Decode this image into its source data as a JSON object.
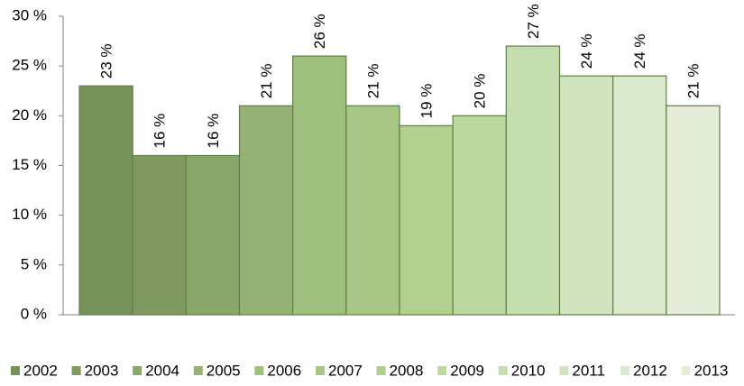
{
  "chart_data": {
    "type": "bar",
    "ylim": [
      0,
      30
    ],
    "yticks": [
      {
        "value": 0,
        "label": "0 %"
      },
      {
        "value": 5,
        "label": "5 %"
      },
      {
        "value": 10,
        "label": "10 %"
      },
      {
        "value": 15,
        "label": "15 %"
      },
      {
        "value": 20,
        "label": "20 %"
      },
      {
        "value": 25,
        "label": "25 %"
      },
      {
        "value": 30,
        "label": "30 %"
      }
    ],
    "legend": "bottom",
    "series": [
      {
        "name": "2002",
        "color": "#77915a",
        "values": [
          23
        ],
        "value_labels": [
          "23 %"
        ]
      },
      {
        "name": "2003",
        "color": "#809a61",
        "values": [
          16
        ],
        "value_labels": [
          "16 %"
        ]
      },
      {
        "name": "2004",
        "color": "#89a66b",
        "values": [
          16
        ],
        "value_labels": [
          "16 %"
        ]
      },
      {
        "name": "2005",
        "color": "#95b175",
        "values": [
          21
        ],
        "value_labels": [
          "21 %"
        ]
      },
      {
        "name": "2006",
        "color": "#9fbf7f",
        "values": [
          26
        ],
        "value_labels": [
          "26 %"
        ]
      },
      {
        "name": "2007",
        "color": "#a8c786",
        "values": [
          21
        ],
        "value_labels": [
          "21 %"
        ]
      },
      {
        "name": "2008",
        "color": "#b1d08e",
        "values": [
          19
        ],
        "value_labels": [
          "19 %"
        ]
      },
      {
        "name": "2009",
        "color": "#bcd8a0",
        "values": [
          20
        ],
        "value_labels": [
          "20 %"
        ]
      },
      {
        "name": "2010",
        "color": "#c5deaf",
        "values": [
          27
        ],
        "value_labels": [
          "27 %"
        ]
      },
      {
        "name": "2011",
        "color": "#d2e3c0",
        "values": [
          24
        ],
        "value_labels": [
          "24 %"
        ]
      },
      {
        "name": "2012",
        "color": "#dae8cb",
        "values": [
          24
        ],
        "value_labels": [
          "24 %"
        ]
      },
      {
        "name": "2013",
        "color": "#e4edd8",
        "values": [
          21
        ],
        "value_labels": [
          "21 %"
        ]
      }
    ]
  }
}
